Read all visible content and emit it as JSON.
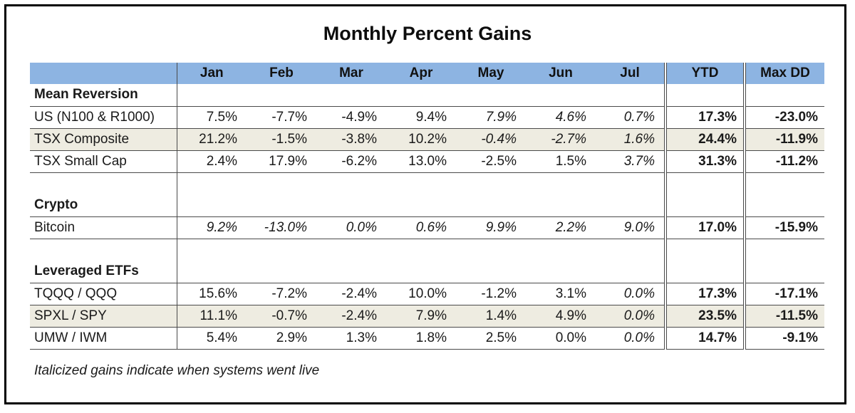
{
  "title": "Monthly Percent Gains",
  "footnote": "Italicized gains indicate when systems went live",
  "colors": {
    "header_bg": "#8DB4E2",
    "shaded_row_bg": "#EEECE1",
    "grid_line": "#4A4A4A",
    "outer_frame": "#000000",
    "text": "#1A1A1A"
  },
  "chart_data": {
    "type": "table",
    "title": "Monthly Percent Gains",
    "month_columns": [
      "Jan",
      "Feb",
      "Mar",
      "Apr",
      "May",
      "Jun",
      "Jul"
    ],
    "summary_columns": [
      "YTD",
      "Max DD"
    ],
    "sections": [
      {
        "label": "Mean Reversion",
        "rows": [
          {
            "label": "US (N100 & R1000)",
            "values": [
              "7.5%",
              "-7.7%",
              "-4.9%",
              "9.4%",
              "7.9%",
              "4.6%",
              "0.7%"
            ],
            "italics": [
              false,
              false,
              false,
              false,
              true,
              true,
              true
            ],
            "ytd": "17.3%",
            "max_dd": "-23.0%",
            "shaded": false
          },
          {
            "label": "TSX Composite",
            "values": [
              "21.2%",
              "-1.5%",
              "-3.8%",
              "10.2%",
              "-0.4%",
              "-2.7%",
              "1.6%"
            ],
            "italics": [
              false,
              false,
              false,
              false,
              true,
              true,
              true
            ],
            "ytd": "24.4%",
            "max_dd": "-11.9%",
            "shaded": true
          },
          {
            "label": "TSX Small Cap",
            "values": [
              "2.4%",
              "17.9%",
              "-6.2%",
              "13.0%",
              "-2.5%",
              "1.5%",
              "3.7%"
            ],
            "italics": [
              false,
              false,
              false,
              false,
              false,
              false,
              true
            ],
            "ytd": "31.3%",
            "max_dd": "-11.2%",
            "shaded": false
          }
        ]
      },
      {
        "label": "Crypto",
        "rows": [
          {
            "label": "Bitcoin",
            "values": [
              "9.2%",
              "-13.0%",
              "0.0%",
              "0.6%",
              "9.9%",
              "2.2%",
              "9.0%"
            ],
            "italics": [
              true,
              true,
              true,
              true,
              true,
              true,
              true
            ],
            "ytd": "17.0%",
            "max_dd": "-15.9%",
            "shaded": false
          }
        ]
      },
      {
        "label": "Leveraged ETFs",
        "rows": [
          {
            "label": "TQQQ / QQQ",
            "values": [
              "15.6%",
              "-7.2%",
              "-2.4%",
              "10.0%",
              "-1.2%",
              "3.1%",
              "0.0%"
            ],
            "italics": [
              false,
              false,
              false,
              false,
              false,
              false,
              true
            ],
            "ytd": "17.3%",
            "max_dd": "-17.1%",
            "shaded": false
          },
          {
            "label": "SPXL / SPY",
            "values": [
              "11.1%",
              "-0.7%",
              "-2.4%",
              "7.9%",
              "1.4%",
              "4.9%",
              "0.0%"
            ],
            "italics": [
              false,
              false,
              false,
              false,
              false,
              false,
              true
            ],
            "ytd": "23.5%",
            "max_dd": "-11.5%",
            "shaded": true
          },
          {
            "label": "UMW / IWM",
            "values": [
              "5.4%",
              "2.9%",
              "1.3%",
              "1.8%",
              "2.5%",
              "0.0%",
              "0.0%"
            ],
            "italics": [
              false,
              false,
              false,
              false,
              false,
              false,
              true
            ],
            "ytd": "14.7%",
            "max_dd": "-9.1%",
            "shaded": false
          }
        ]
      }
    ],
    "note": "Italicized gains indicate when systems went live"
  }
}
